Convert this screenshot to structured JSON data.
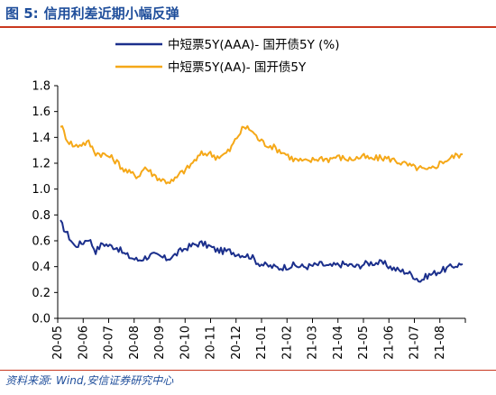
{
  "figure": {
    "label": "图 5:",
    "title": "信用利差近期小幅反弹",
    "source_prefix": "资料来源:",
    "source_text": "Wind,安信证券研究中心"
  },
  "colors": {
    "title": "#1f4e9b",
    "rule": "#c9381f",
    "aaa_series": "#1b2f8c",
    "aa_series": "#f5a818"
  },
  "chart_data": {
    "type": "line",
    "ylim": [
      0,
      1.8
    ],
    "yticks": [
      "0.0",
      "0.2",
      "0.4",
      "0.6",
      "0.8",
      "1.0",
      "1.2",
      "1.4",
      "1.6",
      "1.8"
    ],
    "grid": false,
    "legend_position": "top",
    "x_ticks": [
      "20-05",
      "20-06",
      "20-07",
      "20-08",
      "20-09",
      "20-10",
      "20-11",
      "20-12",
      "21-01",
      "21-02",
      "21-03",
      "21-04",
      "21-05",
      "21-06",
      "21-07",
      "21-08"
    ],
    "series": [
      {
        "name": "中短票5Y(AAA)- 国开债5Y (%)",
        "color": "#1b2f8c",
        "values": [
          0.74,
          0.65,
          0.56,
          0.58,
          0.62,
          0.52,
          0.58,
          0.56,
          0.55,
          0.5,
          0.47,
          0.45,
          0.47,
          0.49,
          0.48,
          0.46,
          0.48,
          0.52,
          0.55,
          0.57,
          0.58,
          0.56,
          0.53,
          0.52,
          0.52,
          0.5,
          0.49,
          0.48,
          0.43,
          0.41,
          0.4,
          0.39,
          0.4,
          0.41,
          0.4,
          0.4,
          0.41,
          0.42,
          0.4,
          0.41,
          0.42,
          0.41,
          0.4,
          0.42,
          0.43,
          0.43,
          0.42,
          0.39,
          0.37,
          0.36,
          0.33,
          0.29,
          0.33,
          0.35,
          0.37,
          0.39,
          0.41,
          0.42
        ]
      },
      {
        "name": "中短票5Y(AA)- 国开债5Y",
        "color": "#f5a818",
        "values": [
          1.5,
          1.38,
          1.33,
          1.35,
          1.36,
          1.28,
          1.27,
          1.25,
          1.21,
          1.15,
          1.12,
          1.1,
          1.17,
          1.12,
          1.08,
          1.06,
          1.06,
          1.12,
          1.16,
          1.22,
          1.27,
          1.28,
          1.25,
          1.26,
          1.3,
          1.4,
          1.48,
          1.46,
          1.39,
          1.35,
          1.33,
          1.3,
          1.27,
          1.23,
          1.22,
          1.21,
          1.23,
          1.24,
          1.23,
          1.25,
          1.24,
          1.23,
          1.24,
          1.25,
          1.23,
          1.24,
          1.24,
          1.23,
          1.21,
          1.19,
          1.17,
          1.16,
          1.14,
          1.17,
          1.21,
          1.23,
          1.26,
          1.27
        ]
      }
    ]
  }
}
